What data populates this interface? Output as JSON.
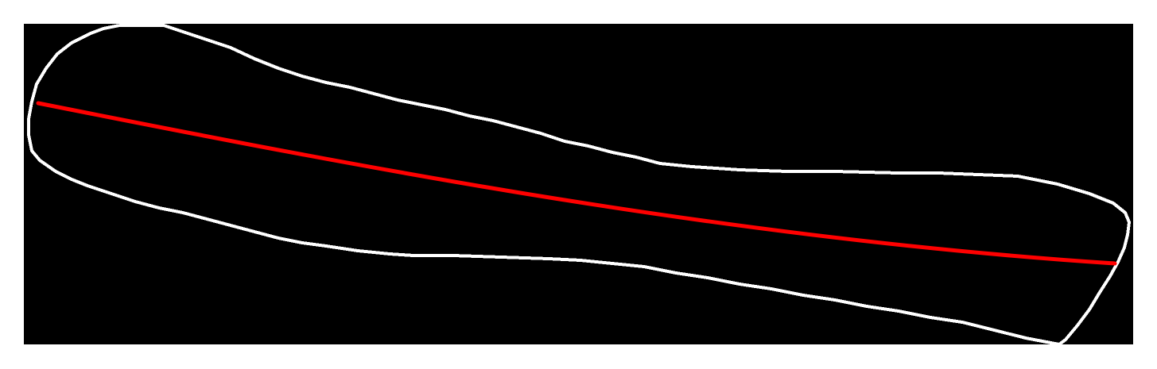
{
  "figure": {
    "background_color": "#000000",
    "page_color": "#ffffff",
    "outline": {
      "kind": "contour",
      "color": "#ffffff",
      "style": "pixelated"
    },
    "midline": {
      "kind": "centerline-curve",
      "color": "#ff0000"
    }
  }
}
